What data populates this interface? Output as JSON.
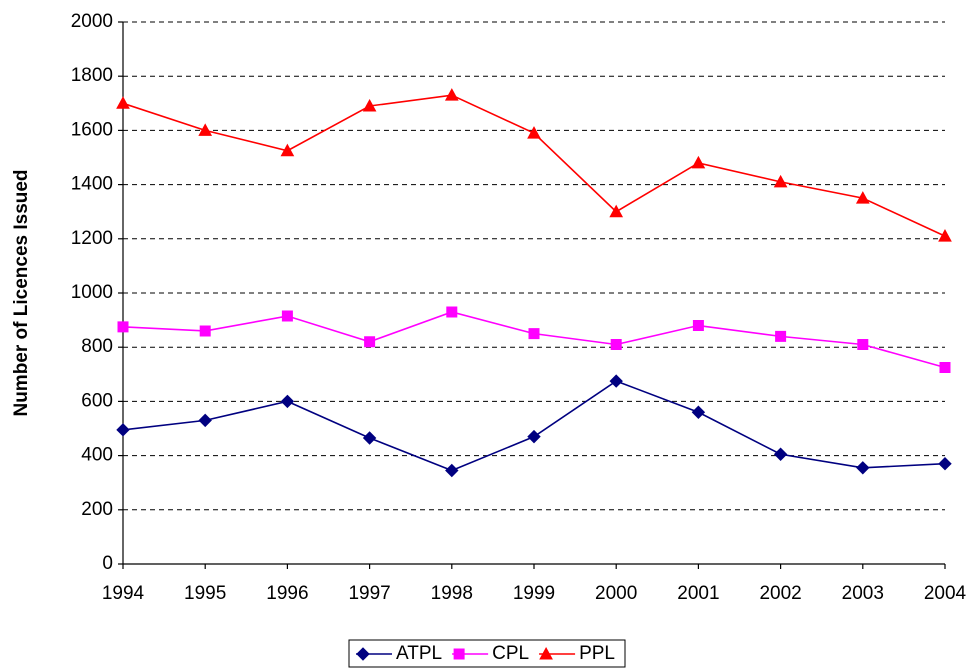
{
  "chart_data": {
    "type": "line",
    "y_label": "Number of Licences Issued",
    "categories": [
      "1994",
      "1995",
      "1996",
      "1997",
      "1998",
      "1999",
      "2000",
      "2001",
      "2002",
      "2003",
      "2004"
    ],
    "series": [
      {
        "name": "ATPL",
        "color": "#000080",
        "marker": "diamond",
        "values": [
          495,
          530,
          600,
          465,
          345,
          470,
          675,
          560,
          405,
          355,
          370
        ]
      },
      {
        "name": "CPL",
        "color": "#ff00ff",
        "marker": "square",
        "values": [
          875,
          860,
          915,
          820,
          930,
          850,
          810,
          880,
          840,
          810,
          725
        ]
      },
      {
        "name": "PPL",
        "color": "#ff0000",
        "marker": "triangle",
        "values": [
          1700,
          1600,
          1525,
          1690,
          1730,
          1590,
          1300,
          1480,
          1410,
          1350,
          1210
        ]
      }
    ],
    "ylim": [
      0,
      2000
    ],
    "yticks": [
      0,
      200,
      400,
      600,
      800,
      1000,
      1200,
      1400,
      1600,
      1800,
      2000
    ],
    "grid": true,
    "legend": "bottom"
  }
}
